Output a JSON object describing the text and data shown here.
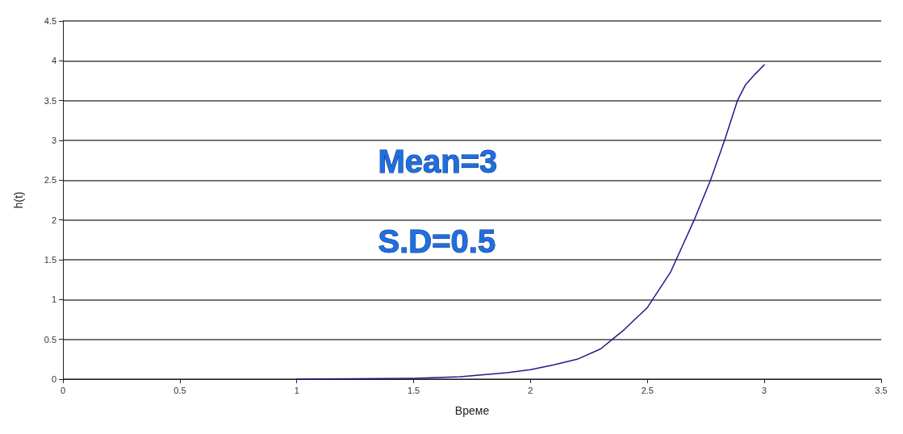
{
  "chart_data": {
    "type": "line",
    "xlabel": "Време",
    "ylabel": "h(t)",
    "annotations": [
      "Mean=3",
      "S.D=0.5"
    ],
    "xlim": [
      0,
      3.5
    ],
    "xticks": [
      0,
      0.5,
      1,
      1.5,
      2,
      2.5,
      3,
      3.5
    ],
    "ylim": [
      0,
      4.5
    ],
    "yticks": [
      0,
      0.5,
      1,
      1.5,
      2,
      2.5,
      3,
      3.5,
      4,
      4.5
    ],
    "grid": "y",
    "marker": "none",
    "line_style": "solid",
    "series": [
      {
        "color": "#1c1c8c",
        "x": [
          1,
          1.5,
          1.7,
          1.9,
          2,
          2.1,
          2.2,
          2.3,
          2.35,
          2.4,
          2.5,
          2.6,
          2.7,
          2.77,
          2.83,
          2.885,
          2.92,
          2.96,
          3
        ],
        "values": [
          0,
          0.01,
          0.03,
          0.08,
          0.12,
          0.18,
          0.25,
          0.38,
          0.5,
          0.62,
          0.9,
          1.35,
          2,
          2.5,
          3,
          3.5,
          3.7,
          3.83,
          3.95
        ]
      }
    ]
  }
}
